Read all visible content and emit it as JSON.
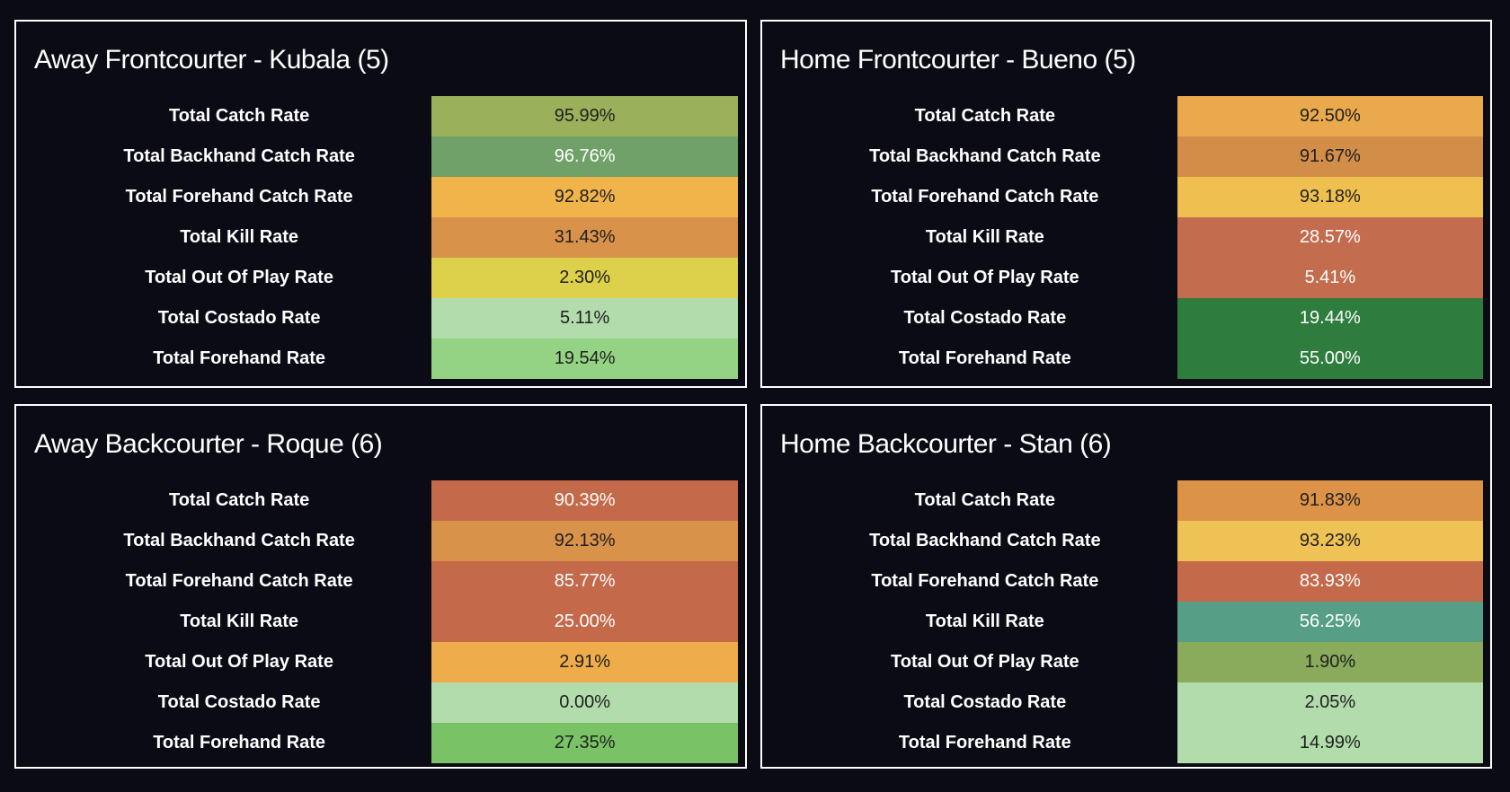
{
  "page": {
    "background": "#0a0b15",
    "panel_border": "#ffffff",
    "dark_text": "#1f1f1f",
    "light_text": "#ffffff"
  },
  "panels": [
    {
      "title": "Away Frontcourter - Kubala (5)",
      "rows": [
        {
          "label": "Total Catch Rate",
          "value": "95.99%",
          "bg": "#9bb05a",
          "fg": "#1f1f1f"
        },
        {
          "label": "Total Backhand Catch Rate",
          "value": "96.76%",
          "bg": "#70a169",
          "fg": "#ffffff"
        },
        {
          "label": "Total Forehand Catch Rate",
          "value": "92.82%",
          "bg": "#f0b44b",
          "fg": "#1f1f1f"
        },
        {
          "label": "Total Kill Rate",
          "value": "31.43%",
          "bg": "#d8924a",
          "fg": "#1f1f1f"
        },
        {
          "label": "Total Out Of Play Rate",
          "value": "2.30%",
          "bg": "#ddd04a",
          "fg": "#1f1f1f"
        },
        {
          "label": "Total Costado Rate",
          "value": "5.11%",
          "bg": "#b2dcab",
          "fg": "#1f1f1f"
        },
        {
          "label": "Total Forehand Rate",
          "value": "19.54%",
          "bg": "#94d384",
          "fg": "#1f1f1f"
        }
      ]
    },
    {
      "title": "Home Frontcourter - Bueno (5)",
      "rows": [
        {
          "label": "Total Catch Rate",
          "value": "92.50%",
          "bg": "#e9a94c",
          "fg": "#1f1f1f"
        },
        {
          "label": "Total Backhand Catch Rate",
          "value": "91.67%",
          "bg": "#d28e49",
          "fg": "#1f1f1f"
        },
        {
          "label": "Total Forehand Catch Rate",
          "value": "93.18%",
          "bg": "#efc04f",
          "fg": "#1f1f1f"
        },
        {
          "label": "Total Kill Rate",
          "value": "28.57%",
          "bg": "#c36c4e",
          "fg": "#ffffff"
        },
        {
          "label": "Total Out Of Play Rate",
          "value": "5.41%",
          "bg": "#c36c4e",
          "fg": "#ffffff"
        },
        {
          "label": "Total Costado Rate",
          "value": "19.44%",
          "bg": "#2e7d3e",
          "fg": "#ffffff"
        },
        {
          "label": "Total Forehand Rate",
          "value": "55.00%",
          "bg": "#2e7d3e",
          "fg": "#ffffff"
        }
      ]
    },
    {
      "title": "Away Backcourter - Roque (6)",
      "rows": [
        {
          "label": "Total Catch Rate",
          "value": "90.39%",
          "bg": "#c4694a",
          "fg": "#ffffff"
        },
        {
          "label": "Total Backhand Catch Rate",
          "value": "92.13%",
          "bg": "#d8924a",
          "fg": "#1f1f1f"
        },
        {
          "label": "Total Forehand Catch Rate",
          "value": "85.77%",
          "bg": "#c4694a",
          "fg": "#ffffff"
        },
        {
          "label": "Total Kill Rate",
          "value": "25.00%",
          "bg": "#c4694a",
          "fg": "#ffffff"
        },
        {
          "label": "Total Out Of Play Rate",
          "value": "2.91%",
          "bg": "#eead4a",
          "fg": "#1f1f1f"
        },
        {
          "label": "Total Costado Rate",
          "value": "0.00%",
          "bg": "#b2dcab",
          "fg": "#1f1f1f"
        },
        {
          "label": "Total Forehand Rate",
          "value": "27.35%",
          "bg": "#79c366",
          "fg": "#1f1f1f"
        }
      ]
    },
    {
      "title": "Home Backcourter - Stan (6)",
      "rows": [
        {
          "label": "Total Catch Rate",
          "value": "91.83%",
          "bg": "#dc9347",
          "fg": "#1f1f1f"
        },
        {
          "label": "Total Backhand Catch Rate",
          "value": "93.23%",
          "bg": "#eec254",
          "fg": "#1f1f1f"
        },
        {
          "label": "Total Forehand Catch Rate",
          "value": "83.93%",
          "bg": "#c4694a",
          "fg": "#ffffff"
        },
        {
          "label": "Total Kill Rate",
          "value": "56.25%",
          "bg": "#579e87",
          "fg": "#ffffff"
        },
        {
          "label": "Total Out Of Play Rate",
          "value": "1.90%",
          "bg": "#8aab5c",
          "fg": "#1f1f1f"
        },
        {
          "label": "Total Costado Rate",
          "value": "2.05%",
          "bg": "#b2dcab",
          "fg": "#1f1f1f"
        },
        {
          "label": "Total Forehand Rate",
          "value": "14.99%",
          "bg": "#b2dcab",
          "fg": "#1f1f1f"
        }
      ]
    }
  ],
  "chart_data": [
    {
      "type": "table",
      "title": "Away Frontcourter - Kubala (5)",
      "categories": [
        "Total Catch Rate",
        "Total Backhand Catch Rate",
        "Total Forehand Catch Rate",
        "Total Kill Rate",
        "Total Out Of Play Rate",
        "Total Costado Rate",
        "Total Forehand Rate"
      ],
      "values": [
        95.99,
        96.76,
        92.82,
        31.43,
        2.3,
        5.11,
        19.54
      ],
      "unit": "%",
      "legend_position": "none",
      "note": "highlight table, cells color-coded from red (bad) to green (good)"
    },
    {
      "type": "table",
      "title": "Home Frontcourter - Bueno (5)",
      "categories": [
        "Total Catch Rate",
        "Total Backhand Catch Rate",
        "Total Forehand Catch Rate",
        "Total Kill Rate",
        "Total Out Of Play Rate",
        "Total Costado Rate",
        "Total Forehand Rate"
      ],
      "values": [
        92.5,
        91.67,
        93.18,
        28.57,
        5.41,
        19.44,
        55.0
      ],
      "unit": "%",
      "legend_position": "none",
      "note": "highlight table, cells color-coded from red (bad) to green (good)"
    },
    {
      "type": "table",
      "title": "Away Backcourter - Roque (6)",
      "categories": [
        "Total Catch Rate",
        "Total Backhand Catch Rate",
        "Total Forehand Catch Rate",
        "Total Kill Rate",
        "Total Out Of Play Rate",
        "Total Costado Rate",
        "Total Forehand Rate"
      ],
      "values": [
        90.39,
        92.13,
        85.77,
        25.0,
        2.91,
        0.0,
        27.35
      ],
      "unit": "%",
      "legend_position": "none",
      "note": "highlight table, cells color-coded from red (bad) to green (good)"
    },
    {
      "type": "table",
      "title": "Home Backcourter - Stan (6)",
      "categories": [
        "Total Catch Rate",
        "Total Backhand Catch Rate",
        "Total Forehand Catch Rate",
        "Total Kill Rate",
        "Total Out Of Play Rate",
        "Total Costado Rate",
        "Total Forehand Rate"
      ],
      "values": [
        91.83,
        93.23,
        83.93,
        56.25,
        1.9,
        2.05,
        14.99
      ],
      "unit": "%",
      "legend_position": "none",
      "note": "highlight table, cells color-coded from red (bad) to green (good)"
    }
  ]
}
